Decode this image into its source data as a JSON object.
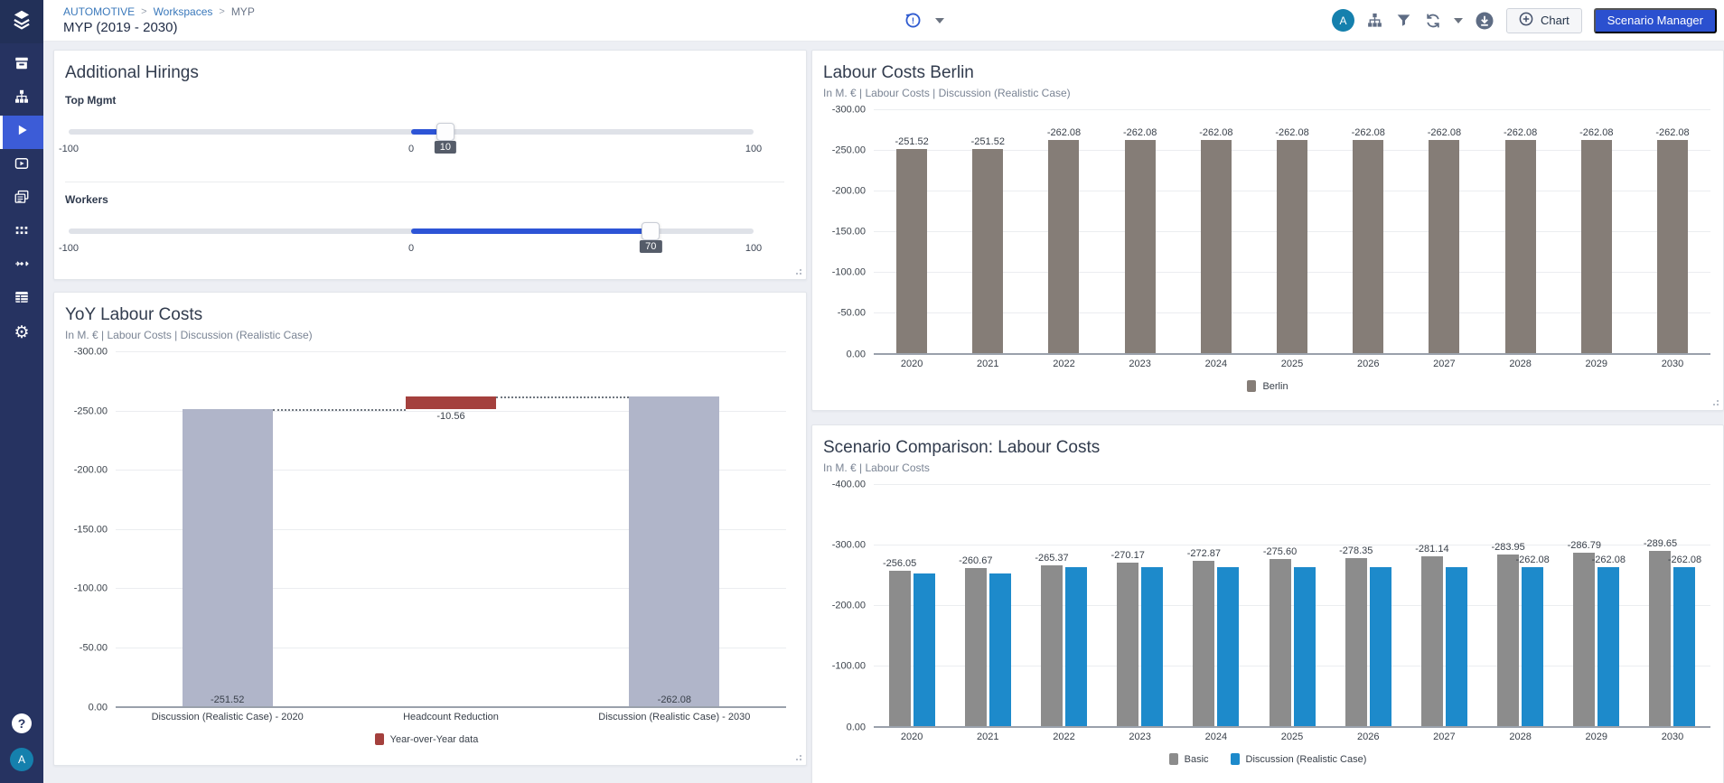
{
  "app": {
    "sidebar": {
      "logo": "layers-logo",
      "nav_items": [
        "archive",
        "sitemap",
        "play",
        "video",
        "slides",
        "nodes",
        "flows",
        "table",
        "settings"
      ],
      "active_item": "play",
      "help_label": "?",
      "avatar_initial": "A"
    },
    "breadcrumb": {
      "items": [
        "AUTOMOTIVE",
        "Workspaces",
        "MYP"
      ],
      "separator": ">"
    },
    "title": "MYP (2019 - 2030)",
    "header": {
      "avatar_initial": "A",
      "chart_button_label": "Chart",
      "scenario_manager_label": "Scenario Manager"
    }
  },
  "panels": {
    "hirings": {
      "title": "Additional Hirings",
      "sliders": [
        {
          "label": "Top Mgmt",
          "min": -100,
          "mid": 0,
          "max": 100,
          "value": 10
        },
        {
          "label": "Workers",
          "min": -100,
          "mid": 0,
          "max": 100,
          "value": 70
        }
      ]
    }
  },
  "chart_data": [
    {
      "id": "yoy",
      "type": "bar",
      "variant": "waterfall",
      "title": "YoY Labour Costs",
      "subtitle": "In M. €  | Labour Costs  | Discussion (Realistic Case)",
      "ylim": [
        -300,
        0
      ],
      "ytick_step": 50,
      "yticks": [
        "-300.00",
        "-250.00",
        "-200.00",
        "-150.00",
        "-100.00",
        "-50.00",
        "0.00"
      ],
      "grid": true,
      "categories": [
        "Discussion (Realistic Case) - 2020",
        "Headcount Reduction",
        "Discussion (Realistic Case) - 2030"
      ],
      "bars": [
        {
          "value": -251.52,
          "from": 0,
          "label": "-251.52",
          "label_pos": "inside-bottom",
          "color": "#b0b5c9"
        },
        {
          "value": -10.56,
          "from": -251.52,
          "label": "-10.56",
          "label_pos": "below",
          "color": "#a4403d"
        },
        {
          "value": -262.08,
          "from": 0,
          "label": "-262.08",
          "label_pos": "inside-bottom",
          "color": "#b0b5c9"
        }
      ],
      "connectors": [
        {
          "level": -251.52,
          "from_bar": 0,
          "to_bar": 1
        },
        {
          "level": -262.08,
          "from_bar": 1,
          "to_bar": 2
        }
      ],
      "legend": [
        {
          "label": "Year-over-Year data",
          "color": "#a4403d"
        }
      ],
      "legend_position": "bottom"
    },
    {
      "id": "berlin",
      "type": "bar",
      "title": "Labour Costs Berlin",
      "subtitle": "In M. €  | Labour Costs  | Discussion (Realistic Case)",
      "ylim": [
        -300,
        0
      ],
      "ytick_step": 50,
      "yticks": [
        "-300.00",
        "-250.00",
        "-200.00",
        "-150.00",
        "-100.00",
        "-50.00",
        "0.00"
      ],
      "grid": true,
      "categories": [
        "2020",
        "2021",
        "2022",
        "2023",
        "2024",
        "2025",
        "2026",
        "2027",
        "2028",
        "2029",
        "2030"
      ],
      "series": [
        {
          "name": "Berlin",
          "color": "#857d77",
          "values": [
            -251.52,
            -251.52,
            -262.08,
            -262.08,
            -262.08,
            -262.08,
            -262.08,
            -262.08,
            -262.08,
            -262.08,
            -262.08
          ],
          "labels": [
            "-251.52",
            "-251.52",
            "-262.08",
            "-262.08",
            "-262.08",
            "-262.08",
            "-262.08",
            "-262.08",
            "-262.08",
            "-262.08",
            "-262.08"
          ]
        }
      ],
      "legend": [
        {
          "label": "Berlin",
          "color": "#857d77"
        }
      ],
      "legend_position": "bottom"
    },
    {
      "id": "scenario",
      "type": "bar",
      "title": "Scenario Comparison: Labour Costs",
      "subtitle": "In M. €  | Labour Costs",
      "ylim": [
        -400,
        0
      ],
      "ytick_step": 100,
      "yticks": [
        "-400.00",
        "-300.00",
        "-200.00",
        "-100.00",
        "0.00"
      ],
      "grid": true,
      "categories": [
        "2020",
        "2021",
        "2022",
        "2023",
        "2024",
        "2025",
        "2026",
        "2027",
        "2028",
        "2029",
        "2030"
      ],
      "series": [
        {
          "name": "Basic",
          "color": "#8c8c8c",
          "values": [
            -256.05,
            -260.67,
            -265.37,
            -270.17,
            -272.87,
            -275.6,
            -278.35,
            -281.14,
            -283.95,
            -286.79,
            -289.65
          ],
          "labels": [
            "-256.05",
            "-260.67",
            "-265.37",
            "-270.17",
            "-272.87",
            "-275.60",
            "-278.35",
            "-281.14",
            "-283.95",
            "-286.79",
            "-289.65"
          ]
        },
        {
          "name": "Discussion (Realistic Case)",
          "color": "#1d8acb",
          "values": [
            -251.52,
            -251.52,
            -262.08,
            -262.08,
            -262.08,
            -262.08,
            -262.08,
            -262.08,
            -262.08,
            -262.08,
            -262.08
          ],
          "labels": [
            "",
            "",
            "",
            "",
            "",
            "",
            "",
            "",
            "-262.08",
            "-262.08",
            "-262.08"
          ]
        }
      ],
      "legend": [
        {
          "label": "Basic",
          "color": "#8c8c8c"
        },
        {
          "label": "Discussion (Realistic Case)",
          "color": "#1d8acb"
        }
      ],
      "legend_position": "bottom"
    }
  ],
  "colors": {
    "sidebar_navy": "#263361",
    "active_nav_blue": "#3c5cd7",
    "accent_blue": "#2d54d6",
    "primary_button_blue": "#2b50cf",
    "link_blue": "#3b79bb",
    "avatar_teal": "#1580ad",
    "bar_periwinkle": "#b0b5c9",
    "bar_red": "#a4403d",
    "bar_brown_gray": "#857d77",
    "bar_gray": "#8c8c8c",
    "bar_blue": "#1d8acb"
  }
}
